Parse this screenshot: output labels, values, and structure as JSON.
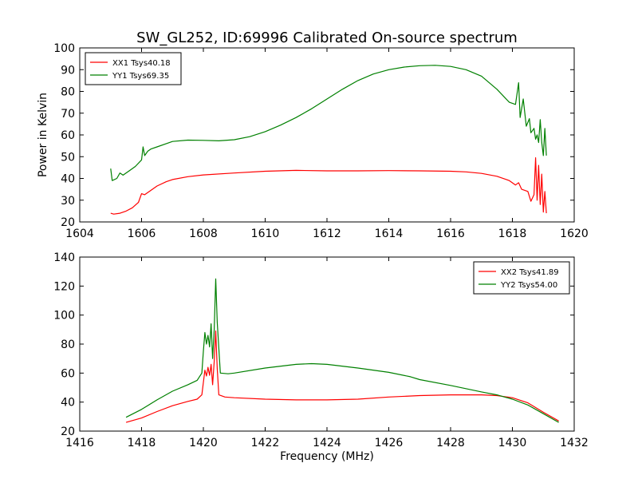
{
  "figure": {
    "title": "SW_GL252, ID:69996 Calibrated On-source spectrum",
    "ylabel": "Power in Kelvin",
    "xlabel": "Frequency (MHz)"
  },
  "chart_data": [
    {
      "type": "line",
      "title": "SW_GL252, ID:69996 Calibrated On-source spectrum",
      "xlabel": "",
      "ylabel": "Power in Kelvin",
      "xlim": [
        1604,
        1620
      ],
      "ylim": [
        20,
        100
      ],
      "xticks": [
        1604,
        1606,
        1608,
        1610,
        1612,
        1614,
        1616,
        1618,
        1620
      ],
      "yticks": [
        20,
        30,
        40,
        50,
        60,
        70,
        80,
        90,
        100
      ],
      "legend_position": "top-left",
      "series": [
        {
          "name": "XX1 Tsys40.18",
          "color": "#ff0000",
          "points": [
            [
              1605.0,
              24.0
            ],
            [
              1605.1,
              23.6
            ],
            [
              1605.3,
              24.0
            ],
            [
              1605.5,
              25.0
            ],
            [
              1605.7,
              26.5
            ],
            [
              1605.9,
              29.0
            ],
            [
              1606.0,
              33.0
            ],
            [
              1606.1,
              32.5
            ],
            [
              1606.3,
              34.5
            ],
            [
              1606.5,
              36.5
            ],
            [
              1606.8,
              38.5
            ],
            [
              1607.0,
              39.5
            ],
            [
              1607.5,
              40.8
            ],
            [
              1608.0,
              41.6
            ],
            [
              1609.0,
              42.5
            ],
            [
              1610.0,
              43.3
            ],
            [
              1611.0,
              43.7
            ],
            [
              1612.0,
              43.5
            ],
            [
              1613.0,
              43.5
            ],
            [
              1614.0,
              43.6
            ],
            [
              1615.0,
              43.5
            ],
            [
              1616.0,
              43.3
            ],
            [
              1616.5,
              43.0
            ],
            [
              1617.0,
              42.3
            ],
            [
              1617.5,
              41.0
            ],
            [
              1617.9,
              39.0
            ],
            [
              1618.1,
              37.0
            ],
            [
              1618.2,
              38.0
            ],
            [
              1618.3,
              35.0
            ],
            [
              1618.5,
              34.0
            ],
            [
              1618.6,
              29.5
            ],
            [
              1618.7,
              32.5
            ],
            [
              1618.75,
              49.5
            ],
            [
              1618.8,
              30.0
            ],
            [
              1618.85,
              46.0
            ],
            [
              1618.9,
              28.0
            ],
            [
              1618.95,
              42.0
            ],
            [
              1619.0,
              24.5
            ],
            [
              1619.05,
              34.0
            ],
            [
              1619.1,
              24.0
            ]
          ]
        },
        {
          "name": "YY1 Tsys69.35",
          "color": "#008000",
          "points": [
            [
              1605.0,
              44.5
            ],
            [
              1605.05,
              39.0
            ],
            [
              1605.2,
              40.0
            ],
            [
              1605.3,
              42.5
            ],
            [
              1605.4,
              41.5
            ],
            [
              1605.6,
              43.5
            ],
            [
              1605.8,
              45.5
            ],
            [
              1606.0,
              48.5
            ],
            [
              1606.05,
              54.5
            ],
            [
              1606.1,
              50.5
            ],
            [
              1606.2,
              52.5
            ],
            [
              1606.3,
              53.5
            ],
            [
              1606.5,
              54.5
            ],
            [
              1606.8,
              56.0
            ],
            [
              1607.0,
              57.0
            ],
            [
              1607.5,
              57.6
            ],
            [
              1608.0,
              57.5
            ],
            [
              1608.5,
              57.3
            ],
            [
              1609.0,
              57.8
            ],
            [
              1609.5,
              59.2
            ],
            [
              1610.0,
              61.5
            ],
            [
              1610.5,
              64.5
            ],
            [
              1611.0,
              68.0
            ],
            [
              1611.5,
              72.0
            ],
            [
              1612.0,
              76.5
            ],
            [
              1612.5,
              81.0
            ],
            [
              1613.0,
              85.0
            ],
            [
              1613.5,
              88.0
            ],
            [
              1614.0,
              90.0
            ],
            [
              1614.5,
              91.2
            ],
            [
              1615.0,
              91.8
            ],
            [
              1615.5,
              92.0
            ],
            [
              1616.0,
              91.5
            ],
            [
              1616.5,
              90.0
            ],
            [
              1617.0,
              87.0
            ],
            [
              1617.5,
              81.0
            ],
            [
              1617.9,
              75.0
            ],
            [
              1618.1,
              74.0
            ],
            [
              1618.2,
              84.0
            ],
            [
              1618.25,
              68.0
            ],
            [
              1618.35,
              76.5
            ],
            [
              1618.45,
              64.0
            ],
            [
              1618.55,
              67.5
            ],
            [
              1618.6,
              61.0
            ],
            [
              1618.7,
              63.0
            ],
            [
              1618.75,
              58.0
            ],
            [
              1618.8,
              60.0
            ],
            [
              1618.85,
              56.5
            ],
            [
              1618.9,
              67.0
            ],
            [
              1618.95,
              56.5
            ],
            [
              1619.0,
              50.5
            ],
            [
              1619.05,
              63.0
            ],
            [
              1619.1,
              50.5
            ]
          ]
        }
      ]
    },
    {
      "type": "line",
      "title": "",
      "xlabel": "Frequency (MHz)",
      "ylabel": "",
      "xlim": [
        1416,
        1432
      ],
      "ylim": [
        20,
        140
      ],
      "xticks": [
        1416,
        1418,
        1420,
        1422,
        1424,
        1426,
        1428,
        1430,
        1432
      ],
      "yticks": [
        20,
        40,
        60,
        80,
        100,
        120,
        140
      ],
      "legend_position": "top-right",
      "series": [
        {
          "name": "XX2 Tsys41.89",
          "color": "#ff0000",
          "points": [
            [
              1417.5,
              26.0
            ],
            [
              1418.0,
              29.0
            ],
            [
              1418.5,
              33.5
            ],
            [
              1419.0,
              37.5
            ],
            [
              1419.5,
              40.5
            ],
            [
              1419.8,
              42.0
            ],
            [
              1419.95,
              45.0
            ],
            [
              1420.05,
              62.0
            ],
            [
              1420.1,
              58.0
            ],
            [
              1420.15,
              64.0
            ],
            [
              1420.2,
              58.5
            ],
            [
              1420.25,
              66.0
            ],
            [
              1420.3,
              52.0
            ],
            [
              1420.35,
              68.0
            ],
            [
              1420.4,
              89.0
            ],
            [
              1420.45,
              63.0
            ],
            [
              1420.5,
              45.0
            ],
            [
              1420.7,
              43.5
            ],
            [
              1421.0,
              43.0
            ],
            [
              1422.0,
              42.0
            ],
            [
              1423.0,
              41.5
            ],
            [
              1424.0,
              41.5
            ],
            [
              1425.0,
              42.0
            ],
            [
              1426.0,
              43.5
            ],
            [
              1427.0,
              44.5
            ],
            [
              1428.0,
              45.0
            ],
            [
              1429.0,
              45.0
            ],
            [
              1429.5,
              44.5
            ],
            [
              1430.0,
              43.0
            ],
            [
              1430.5,
              39.5
            ],
            [
              1431.0,
              33.0
            ],
            [
              1431.5,
              27.0
            ]
          ]
        },
        {
          "name": "YY2 Tsys54.00",
          "color": "#008000",
          "points": [
            [
              1417.5,
              29.5
            ],
            [
              1418.0,
              35.0
            ],
            [
              1418.5,
              41.5
            ],
            [
              1419.0,
              47.5
            ],
            [
              1419.5,
              52.0
            ],
            [
              1419.8,
              55.0
            ],
            [
              1419.95,
              60.0
            ],
            [
              1420.0,
              75.0
            ],
            [
              1420.05,
              88.0
            ],
            [
              1420.1,
              80.0
            ],
            [
              1420.15,
              86.0
            ],
            [
              1420.2,
              78.0
            ],
            [
              1420.25,
              94.0
            ],
            [
              1420.3,
              70.0
            ],
            [
              1420.35,
              90.0
            ],
            [
              1420.4,
              125.0
            ],
            [
              1420.45,
              95.0
            ],
            [
              1420.55,
              60.0
            ],
            [
              1420.8,
              59.5
            ],
            [
              1421.0,
              60.0
            ],
            [
              1422.0,
              63.5
            ],
            [
              1423.0,
              66.0
            ],
            [
              1423.5,
              66.5
            ],
            [
              1424.0,
              66.0
            ],
            [
              1425.0,
              63.5
            ],
            [
              1426.0,
              60.5
            ],
            [
              1426.7,
              57.5
            ],
            [
              1427.0,
              55.5
            ],
            [
              1428.0,
              51.5
            ],
            [
              1429.0,
              47.0
            ],
            [
              1429.5,
              45.0
            ],
            [
              1430.0,
              42.0
            ],
            [
              1430.5,
              38.0
            ],
            [
              1431.0,
              32.0
            ],
            [
              1431.5,
              26.0
            ]
          ]
        }
      ]
    }
  ]
}
